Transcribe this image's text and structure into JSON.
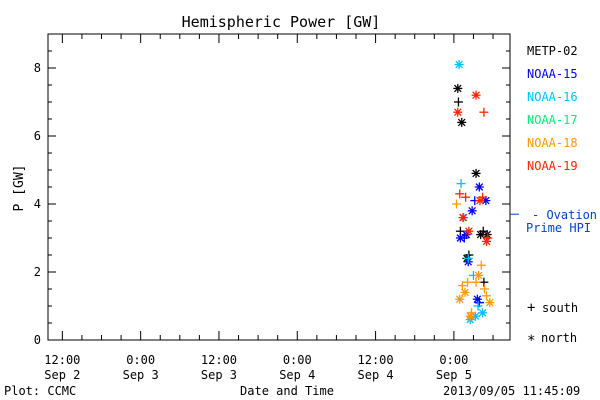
{
  "chart_data": {
    "type": "scatter",
    "title": "Hemispheric Power [GW]",
    "ylabel": "P [GW]",
    "xlabel": "Date and Time",
    "ylim": [
      0,
      9
    ],
    "y_ticks": [
      0,
      2,
      4,
      6,
      8
    ],
    "x_ticks": [
      {
        "time": "Sep 2 12:00",
        "hours": 0,
        "line1": "12:00",
        "line2": "Sep 2"
      },
      {
        "time": "Sep 3 0:00",
        "hours": 12,
        "line1": "0:00",
        "line2": "Sep 3"
      },
      {
        "time": "Sep 3 12:00",
        "hours": 24,
        "line1": "12:00",
        "line2": "Sep 3"
      },
      {
        "time": "Sep 4 0:00",
        "hours": 36,
        "line1": "0:00",
        "line2": "Sep 4"
      },
      {
        "time": "Sep 4 12:00",
        "hours": 48,
        "line1": "12:00",
        "line2": "Sep 4"
      },
      {
        "time": "Sep 5 0:00",
        "hours": 60,
        "line1": "0:00",
        "line2": "Sep 5"
      }
    ],
    "xlim_hours": [
      -2.2,
      68.6
    ],
    "legend_placement": "right",
    "series": [
      {
        "name": "METP-02",
        "color": "#000000",
        "points": [
          {
            "h": 60.7,
            "p": 7.0,
            "m": "plus"
          },
          {
            "h": 60.6,
            "p": 7.4,
            "m": "star"
          },
          {
            "h": 61.2,
            "p": 6.4,
            "m": "star"
          },
          {
            "h": 61.0,
            "p": 3.2,
            "m": "plus"
          },
          {
            "h": 62.0,
            "p": 2.4,
            "m": "star"
          },
          {
            "h": 62.3,
            "p": 2.5,
            "m": "plus"
          },
          {
            "h": 63.4,
            "p": 4.9,
            "m": "star"
          },
          {
            "h": 64.1,
            "p": 3.1,
            "m": "star"
          },
          {
            "h": 64.5,
            "p": 3.2,
            "m": "plus"
          },
          {
            "h": 65.1,
            "p": 3.1,
            "m": "star"
          },
          {
            "h": 64.6,
            "p": 1.7,
            "m": "plus"
          },
          {
            "h": 63.9,
            "p": 1.1,
            "m": "plus"
          }
        ]
      },
      {
        "name": "NOAA-15",
        "color": "#0000ff",
        "points": [
          {
            "h": 61.0,
            "p": 3.0,
            "m": "star"
          },
          {
            "h": 61.6,
            "p": 3.0,
            "m": "plus"
          },
          {
            "h": 61.9,
            "p": 3.1,
            "m": "star"
          },
          {
            "h": 62.8,
            "p": 3.8,
            "m": "star"
          },
          {
            "h": 63.2,
            "p": 4.1,
            "m": "plus"
          },
          {
            "h": 63.9,
            "p": 4.5,
            "m": "star"
          },
          {
            "h": 64.9,
            "p": 4.1,
            "m": "star"
          },
          {
            "h": 62.2,
            "p": 2.3,
            "m": "star"
          },
          {
            "h": 63.6,
            "p": 1.2,
            "m": "star"
          },
          {
            "h": 63.9,
            "p": 1.1,
            "m": "plus"
          }
        ]
      },
      {
        "name": "NOAA-16",
        "color": "#00bfff",
        "points": [
          {
            "h": 60.8,
            "p": 8.1,
            "m": "star"
          },
          {
            "h": 61.1,
            "p": 4.6,
            "m": "plus"
          },
          {
            "h": 61.5,
            "p": 3.6,
            "m": "star"
          },
          {
            "h": 62.2,
            "p": 2.4,
            "m": "plus"
          },
          {
            "h": 63.0,
            "p": 1.9,
            "m": "plus"
          },
          {
            "h": 62.5,
            "p": 0.6,
            "m": "star"
          },
          {
            "h": 63.3,
            "p": 0.7,
            "m": "star"
          },
          {
            "h": 64.4,
            "p": 0.8,
            "m": "star"
          },
          {
            "h": 63.7,
            "p": 1.0,
            "m": "plus"
          }
        ]
      },
      {
        "name": "NOAA-17",
        "color": "#00ee77",
        "points": []
      },
      {
        "name": "NOAA-18",
        "color": "#ff9900",
        "points": [
          {
            "h": 60.4,
            "p": 4.0,
            "m": "plus"
          },
          {
            "h": 60.9,
            "p": 1.2,
            "m": "star"
          },
          {
            "h": 61.3,
            "p": 1.6,
            "m": "plus"
          },
          {
            "h": 61.7,
            "p": 1.4,
            "m": "star"
          },
          {
            "h": 62.1,
            "p": 1.7,
            "m": "plus"
          },
          {
            "h": 62.7,
            "p": 0.8,
            "m": "plus"
          },
          {
            "h": 62.5,
            "p": 0.7,
            "m": "star"
          },
          {
            "h": 63.4,
            "p": 1.7,
            "m": "plus"
          },
          {
            "h": 63.8,
            "p": 1.9,
            "m": "star"
          },
          {
            "h": 64.2,
            "p": 2.2,
            "m": "plus"
          },
          {
            "h": 64.7,
            "p": 1.5,
            "m": "plus"
          },
          {
            "h": 65.0,
            "p": 1.3,
            "m": "plus"
          },
          {
            "h": 65.5,
            "p": 1.1,
            "m": "star"
          }
        ]
      },
      {
        "name": "NOAA-19",
        "color": "#ff2200",
        "points": [
          {
            "h": 60.6,
            "p": 6.7,
            "m": "star"
          },
          {
            "h": 60.9,
            "p": 4.3,
            "m": "plus"
          },
          {
            "h": 61.4,
            "p": 3.6,
            "m": "star"
          },
          {
            "h": 61.8,
            "p": 4.2,
            "m": "plus"
          },
          {
            "h": 62.3,
            "p": 3.2,
            "m": "star"
          },
          {
            "h": 63.4,
            "p": 7.2,
            "m": "star"
          },
          {
            "h": 64.0,
            "p": 4.1,
            "m": "star"
          },
          {
            "h": 64.6,
            "p": 6.7,
            "m": "plus"
          },
          {
            "h": 64.4,
            "p": 4.2,
            "m": "plus"
          },
          {
            "h": 65.0,
            "p": 2.9,
            "m": "star"
          },
          {
            "h": 65.2,
            "p": 3.0,
            "m": "plus"
          }
        ]
      }
    ],
    "ovation": {
      "label1": "- Ovation",
      "label2": "Prime HPI",
      "value": 3.7,
      "color": "#0044cc"
    },
    "marker_legend": [
      {
        "symbol": "+",
        "label": "south"
      },
      {
        "symbol": "*",
        "label": "north"
      }
    ]
  },
  "footer": {
    "plot_credit": "Plot: CCMC",
    "timestamp": "2013/09/05 11:45:09"
  }
}
